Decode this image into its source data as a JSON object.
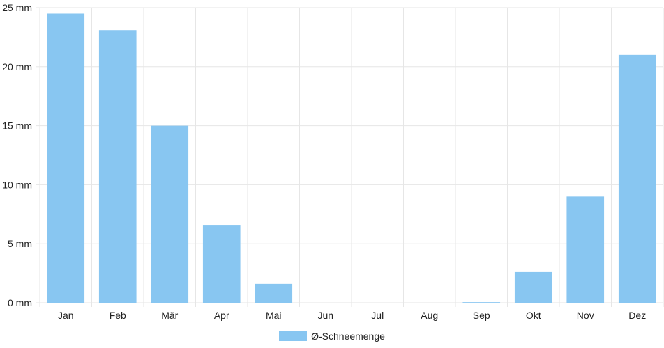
{
  "chart_data": {
    "type": "bar",
    "categories": [
      "Jan",
      "Feb",
      "Mär",
      "Apr",
      "Mai",
      "Jun",
      "Jul",
      "Aug",
      "Sep",
      "Okt",
      "Nov",
      "Dez"
    ],
    "series": [
      {
        "name": "Ø-Schneemenge",
        "values": [
          24.5,
          23.1,
          15.0,
          6.6,
          1.6,
          0,
          0,
          0,
          0.05,
          2.6,
          9.0,
          21.0
        ]
      }
    ],
    "y_ticks": [
      "0 mm",
      "5 mm",
      "10 mm",
      "15 mm",
      "20 mm",
      "25 mm"
    ],
    "ylim": [
      0,
      25
    ],
    "y_unit": "mm",
    "grid": true,
    "legend_position": "bottom-center",
    "colors": {
      "bar": "#88c6f1",
      "grid": "#e6e6e6",
      "axis_text": "#222222"
    }
  }
}
